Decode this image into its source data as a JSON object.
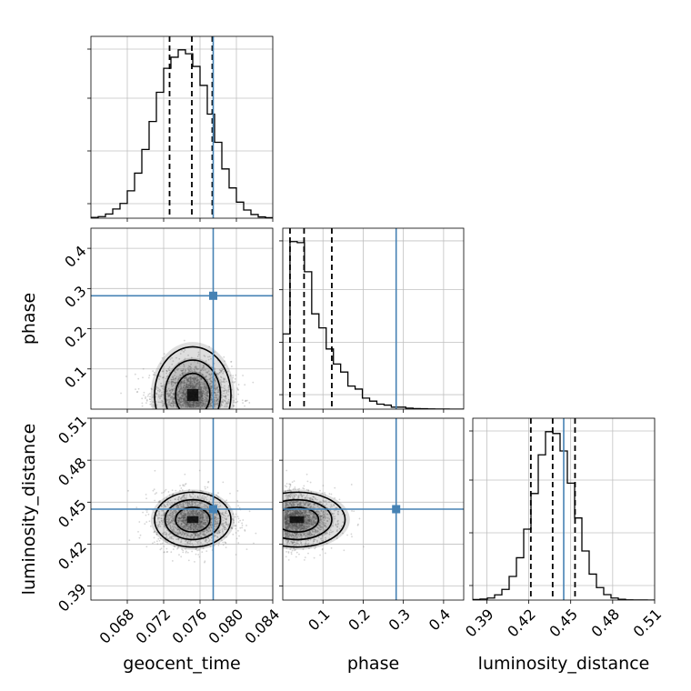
{
  "chart_data": [
    {
      "type": "histogram",
      "panel": "geocent_time",
      "grid": true,
      "xlim": [
        0.064,
        0.084
      ],
      "bin_edges": [
        0.064,
        0.0648,
        0.0656,
        0.0664,
        0.0672,
        0.068,
        0.0688,
        0.0696,
        0.0704,
        0.0712,
        0.072,
        0.0728,
        0.0736,
        0.0744,
        0.0752,
        0.076,
        0.0768,
        0.0776,
        0.0784,
        0.0792,
        0.08,
        0.0808,
        0.0816,
        0.0824,
        0.0832,
        0.084
      ],
      "counts": [
        0.3,
        0.6,
        1.6,
        3.5,
        5.6,
        10.4,
        17.1,
        26.1,
        36.7,
        47.8,
        56.9,
        61.1,
        63.9,
        62.4,
        57.6,
        50.4,
        39.5,
        28.8,
        18.7,
        11.5,
        6.1,
        3.1,
        1.4,
        0.5,
        0.2
      ],
      "quantile_lines": [
        0.07265,
        0.0751,
        0.07735
      ],
      "truth": 0.07745
    },
    {
      "type": "histogram",
      "panel": "phase",
      "grid": true,
      "xlim": [
        0.0,
        0.45
      ],
      "bin_edges": [
        0.0,
        0.018,
        0.036,
        0.054,
        0.072,
        0.09,
        0.108,
        0.126,
        0.144,
        0.162,
        0.18,
        0.198,
        0.216,
        0.234,
        0.252,
        0.27,
        0.288,
        0.306,
        0.324,
        0.342,
        0.36,
        0.378,
        0.396,
        0.414,
        0.432,
        0.45
      ],
      "counts": [
        75,
        167,
        166,
        137,
        95,
        81,
        60,
        45,
        37,
        23,
        20,
        11,
        8,
        5,
        4,
        2,
        2,
        1,
        0.5,
        0.4,
        0.2,
        0.1,
        0.1,
        0,
        0
      ],
      "quantile_lines": [
        0.018,
        0.053,
        0.122
      ],
      "truth": 0.282
    },
    {
      "type": "histogram",
      "panel": "luminosity_distance",
      "grid": true,
      "xlim": [
        0.38,
        0.51
      ],
      "x_ticks": [
        "0.39",
        "0.42",
        "0.45",
        "0.48",
        "0.51"
      ],
      "x_tick_values": [
        0.39,
        0.42,
        0.45,
        0.48,
        0.51
      ],
      "xlabel": "luminosity_distance",
      "bin_edges": [
        0.38,
        0.3852,
        0.3904,
        0.3956,
        0.4008,
        0.406,
        0.4112,
        0.4164,
        0.4216,
        0.4268,
        0.432,
        0.4372,
        0.4424,
        0.4476,
        0.4528,
        0.458,
        0.4632,
        0.4684,
        0.4736,
        0.4788,
        0.484,
        0.4892,
        0.4944,
        0.4996,
        0.5048,
        0.51
      ],
      "counts": [
        0.2,
        0.4,
        0.8,
        2.0,
        4.1,
        9.1,
        16.3,
        27.3,
        41.0,
        55.9,
        64.8,
        64.1,
        57.4,
        45.0,
        31.6,
        18.9,
        10.0,
        4.8,
        2.1,
        0.8,
        0.3,
        0.1,
        0.05,
        0.02,
        0.0
      ],
      "quantile_lines": [
        0.4215,
        0.4371,
        0.4531
      ],
      "truth": 0.445
    },
    {
      "type": "scatter",
      "panel": "phase_vs_geocent_time",
      "grid": true,
      "xlim": [
        0.064,
        0.084
      ],
      "ylim": [
        0.0,
        0.45
      ],
      "y_ticks": [
        "0.1",
        "0.2",
        "0.3",
        "0.4"
      ],
      "y_tick_values": [
        0.1,
        0.2,
        0.3,
        0.4
      ],
      "ylabel": "phase",
      "density_center": [
        0.0752,
        0.04
      ],
      "density_sigma": [
        0.0021,
        0.06
      ],
      "truth": [
        0.07745,
        0.282
      ]
    },
    {
      "type": "scatter",
      "panel": "luminosity_distance_vs_geocent_time",
      "grid": true,
      "xlim": [
        0.064,
        0.084
      ],
      "ylim": [
        0.38,
        0.51
      ],
      "x_ticks": [
        "0.068",
        "0.072",
        "0.076",
        "0.080",
        "0.084"
      ],
      "x_tick_values": [
        0.068,
        0.072,
        0.076,
        0.08,
        0.084
      ],
      "y_ticks": [
        "0.39",
        "0.42",
        "0.45",
        "0.48",
        "0.51"
      ],
      "y_tick_values": [
        0.39,
        0.42,
        0.45,
        0.48,
        0.51
      ],
      "xlabel": "geocent_time",
      "ylabel": "luminosity_distance",
      "density_center": [
        0.0752,
        0.4375
      ],
      "density_sigma": [
        0.0021,
        0.0098
      ],
      "truth": [
        0.07745,
        0.445
      ]
    },
    {
      "type": "scatter",
      "panel": "luminosity_distance_vs_phase",
      "grid": true,
      "xlim": [
        0.0,
        0.45
      ],
      "ylim": [
        0.38,
        0.51
      ],
      "x_ticks": [
        "0.1",
        "0.2",
        "0.3",
        "0.4"
      ],
      "x_tick_values": [
        0.1,
        0.2,
        0.3,
        0.4
      ],
      "xlabel": "phase",
      "density_center": [
        0.03,
        0.4375
      ],
      "density_sigma": [
        0.06,
        0.0098
      ],
      "truth": [
        0.282,
        0.445
      ]
    }
  ],
  "colors": {
    "truth": "#4682b4",
    "hist": "#000000",
    "quantile": "#000000",
    "grid": "#c0c0c0",
    "samples": "#888888"
  }
}
